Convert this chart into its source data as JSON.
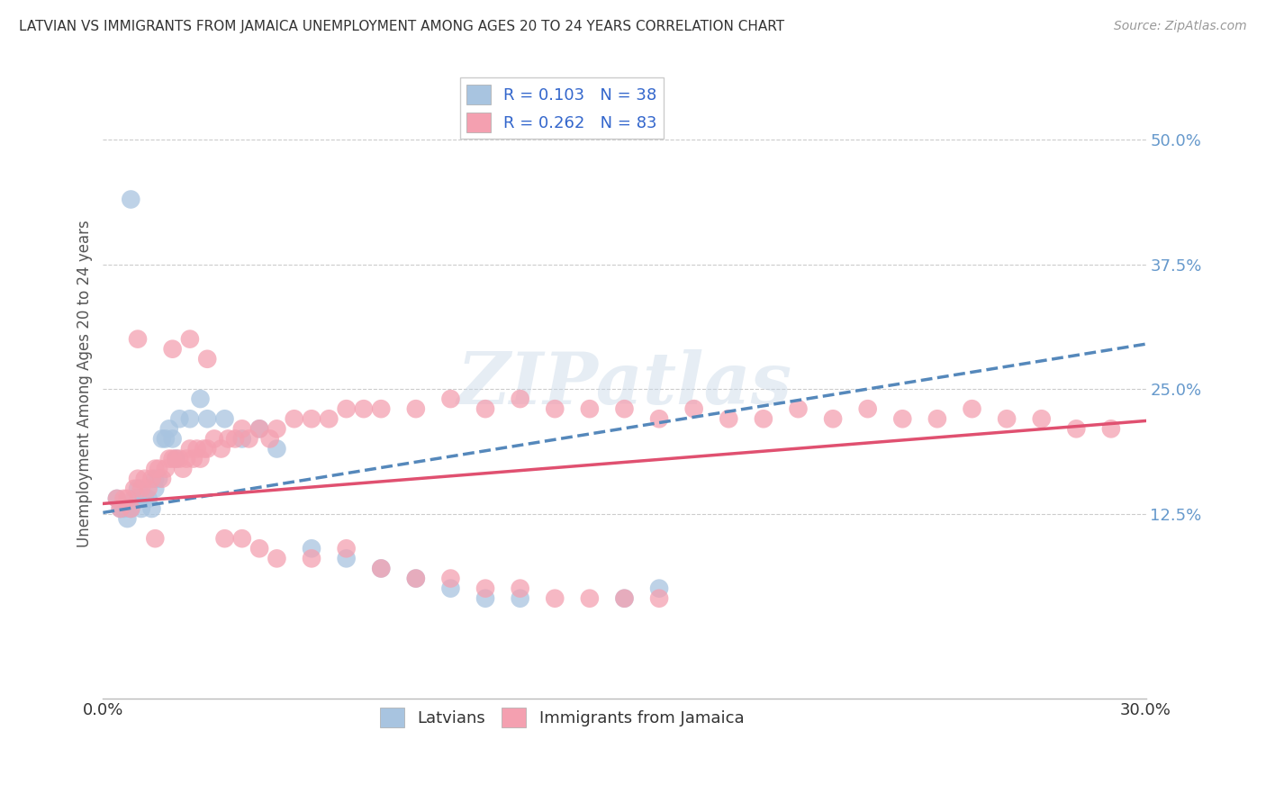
{
  "title": "LATVIAN VS IMMIGRANTS FROM JAMAICA UNEMPLOYMENT AMONG AGES 20 TO 24 YEARS CORRELATION CHART",
  "source": "Source: ZipAtlas.com",
  "ylabel": "Unemployment Among Ages 20 to 24 years",
  "ylabel_ticks": [
    0.125,
    0.25,
    0.375,
    0.5
  ],
  "ylabel_labels": [
    "12.5%",
    "25.0%",
    "37.5%",
    "50.0%"
  ],
  "xlim": [
    0.0,
    0.3
  ],
  "ylim": [
    -0.06,
    0.57
  ],
  "legend_label1": "R = 0.103   N = 38",
  "legend_label2": "R = 0.262   N = 83",
  "legend_bottom1": "Latvians",
  "legend_bottom2": "Immigrants from Jamaica",
  "color_latvian": "#a8c4e0",
  "color_jamaica": "#f4a0b0",
  "color_line_latvian": "#5588bb",
  "color_line_jamaica": "#e05070",
  "watermark": "ZIPatlas",
  "latvian_x": [
    0.004,
    0.005,
    0.006,
    0.007,
    0.008,
    0.009,
    0.01,
    0.01,
    0.011,
    0.012,
    0.013,
    0.014,
    0.015,
    0.015,
    0.016,
    0.017,
    0.018,
    0.019,
    0.02,
    0.021,
    0.022,
    0.025,
    0.028,
    0.03,
    0.035,
    0.04,
    0.045,
    0.05,
    0.06,
    0.07,
    0.08,
    0.09,
    0.1,
    0.11,
    0.12,
    0.15,
    0.16,
    0.008
  ],
  "latvian_y": [
    0.14,
    0.13,
    0.13,
    0.12,
    0.13,
    0.14,
    0.14,
    0.15,
    0.13,
    0.14,
    0.14,
    0.13,
    0.15,
    0.16,
    0.16,
    0.2,
    0.2,
    0.21,
    0.2,
    0.18,
    0.22,
    0.22,
    0.24,
    0.22,
    0.22,
    0.2,
    0.21,
    0.19,
    0.09,
    0.08,
    0.07,
    0.06,
    0.05,
    0.04,
    0.04,
    0.04,
    0.05,
    0.44
  ],
  "jamaica_x": [
    0.004,
    0.005,
    0.006,
    0.007,
    0.008,
    0.009,
    0.01,
    0.011,
    0.012,
    0.013,
    0.014,
    0.015,
    0.016,
    0.017,
    0.018,
    0.019,
    0.02,
    0.021,
    0.022,
    0.023,
    0.024,
    0.025,
    0.026,
    0.027,
    0.028,
    0.029,
    0.03,
    0.032,
    0.034,
    0.036,
    0.038,
    0.04,
    0.042,
    0.045,
    0.048,
    0.05,
    0.055,
    0.06,
    0.065,
    0.07,
    0.075,
    0.08,
    0.09,
    0.1,
    0.11,
    0.12,
    0.13,
    0.14,
    0.15,
    0.16,
    0.17,
    0.18,
    0.19,
    0.2,
    0.21,
    0.22,
    0.23,
    0.24,
    0.25,
    0.26,
    0.27,
    0.28,
    0.29,
    0.01,
    0.015,
    0.02,
    0.025,
    0.03,
    0.035,
    0.04,
    0.045,
    0.05,
    0.06,
    0.07,
    0.08,
    0.09,
    0.1,
    0.11,
    0.12,
    0.13,
    0.14,
    0.15,
    0.16
  ],
  "jamaica_y": [
    0.14,
    0.13,
    0.14,
    0.14,
    0.13,
    0.15,
    0.16,
    0.15,
    0.16,
    0.15,
    0.16,
    0.17,
    0.17,
    0.16,
    0.17,
    0.18,
    0.18,
    0.18,
    0.18,
    0.17,
    0.18,
    0.19,
    0.18,
    0.19,
    0.18,
    0.19,
    0.19,
    0.2,
    0.19,
    0.2,
    0.2,
    0.21,
    0.2,
    0.21,
    0.2,
    0.21,
    0.22,
    0.22,
    0.22,
    0.23,
    0.23,
    0.23,
    0.23,
    0.24,
    0.23,
    0.24,
    0.23,
    0.23,
    0.23,
    0.22,
    0.23,
    0.22,
    0.22,
    0.23,
    0.22,
    0.23,
    0.22,
    0.22,
    0.23,
    0.22,
    0.22,
    0.21,
    0.21,
    0.3,
    0.1,
    0.29,
    0.3,
    0.28,
    0.1,
    0.1,
    0.09,
    0.08,
    0.08,
    0.09,
    0.07,
    0.06,
    0.06,
    0.05,
    0.05,
    0.04,
    0.04,
    0.04,
    0.04
  ],
  "line_lat_x0": 0.0,
  "line_lat_y0": 0.126,
  "line_lat_x1": 0.3,
  "line_lat_y1": 0.295,
  "line_jam_x0": 0.0,
  "line_jam_y0": 0.135,
  "line_jam_x1": 0.3,
  "line_jam_y1": 0.218
}
